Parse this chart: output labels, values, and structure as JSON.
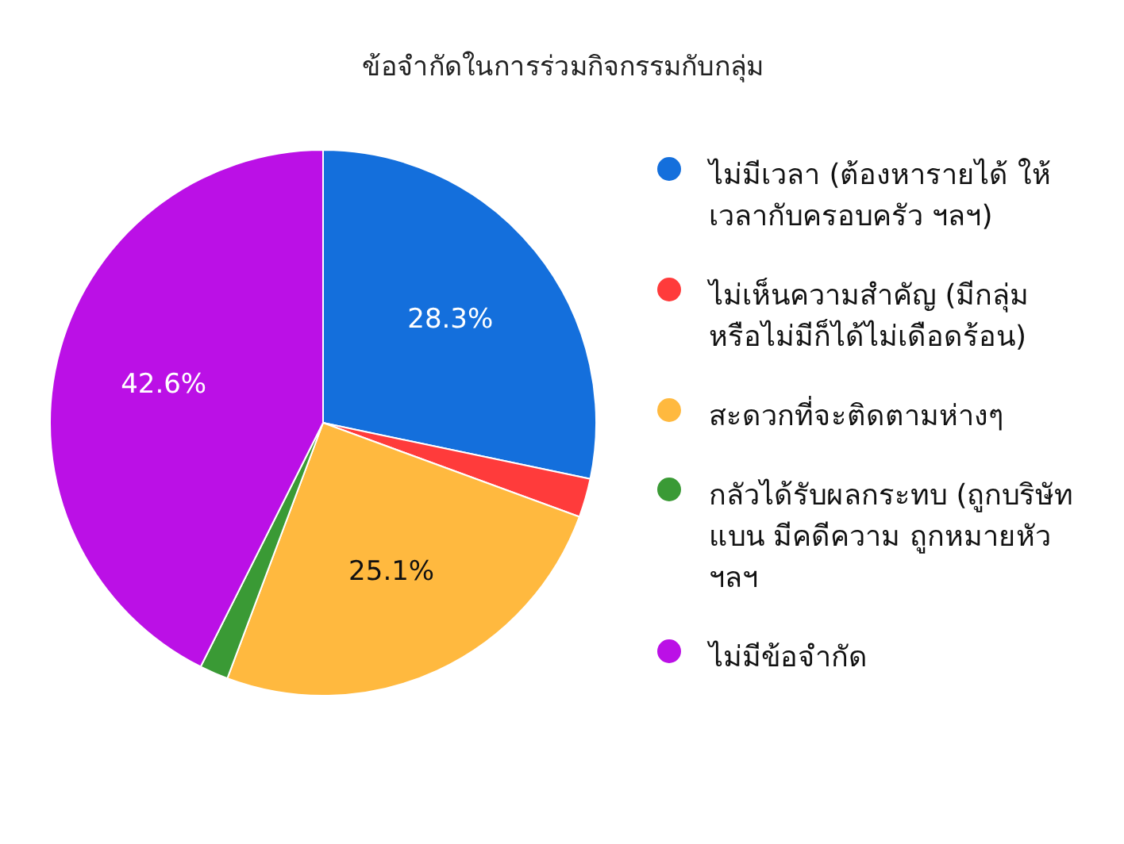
{
  "chart_data": {
    "type": "pie",
    "title": "ข้อจำกัดในการร่วมกิจกรรมกับกลุ่ม",
    "categories": [
      "ไม่มีเวลา (ต้องหารายได้ ให้\nเวลากับครอบครัว ฯลฯ)",
      "ไม่เห็นความสำคัญ (มีกลุ่ม\nหรือไม่มีก็ได้ไม่เดือดร้อน)",
      "สะดวกที่จะติดตามห่างๆ",
      "กลัวได้รับผลกระทบ (ถูกบริษัท\nแบน มีคดีความ ถูกหมายหัว\nฯลฯ",
      "ไม่มีข้อจำกัด"
    ],
    "values": [
      28.3,
      2.3,
      25.1,
      1.7,
      42.6
    ],
    "colors": [
      "#146fdc",
      "#ff3b3b",
      "#ffb93f",
      "#3a9a35",
      "#bb10e6"
    ],
    "value_labels": [
      "28.3%",
      null,
      "25.1%",
      null,
      "42.6%"
    ],
    "legend": "right"
  }
}
